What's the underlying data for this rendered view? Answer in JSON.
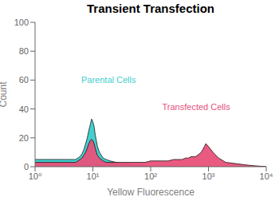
{
  "chart_data": {
    "type": "area",
    "title": "Transient Transfection",
    "xlabel": "Yellow Fluorescence",
    "ylabel": "Count",
    "log": "x",
    "xlim": [
      1,
      10000
    ],
    "xticks": [
      {
        "value": 1,
        "label": "10⁰"
      },
      {
        "value": 10,
        "label": "10¹"
      },
      {
        "value": 100,
        "label": "10²"
      },
      {
        "value": 1000,
        "label": "10³"
      },
      {
        "value": 10000,
        "label": "10⁴"
      }
    ],
    "ylim": [
      0,
      100
    ],
    "yticks": [
      0,
      20,
      40,
      60,
      80,
      100
    ],
    "grid": false,
    "series": [
      {
        "name": "Parental Cells",
        "color": "#45CECE",
        "x": [
          1.0,
          1.5,
          2.0,
          2.5,
          3.0,
          3.5,
          4.0,
          4.5,
          5.0,
          5.5,
          6.0,
          6.5,
          7.0,
          7.5,
          8.0,
          8.5,
          9.0,
          9.5,
          10.0,
          10.5,
          11.0,
          11.5,
          12.0,
          13.0,
          14.0,
          15.0,
          17.0,
          20.0,
          25.0,
          30.0,
          40.0,
          50.0,
          70.0,
          100.0,
          150.0,
          200.0,
          300.0,
          500.0,
          700.0,
          1000.0,
          2000.0,
          5000.0,
          10000.0
        ],
        "values": [
          5,
          5,
          5,
          5,
          5,
          5,
          5,
          5,
          5,
          6,
          7,
          9,
          12,
          16,
          20,
          25,
          29,
          33,
          31,
          28,
          22,
          18,
          14,
          10,
          8,
          6,
          5,
          4,
          3,
          2,
          2,
          1,
          1,
          0,
          0,
          0,
          0,
          0,
          0,
          0,
          0,
          0,
          0
        ]
      },
      {
        "name": "Transfected Cells",
        "color": "#E8517A",
        "x": [
          1.0,
          1.5,
          2.0,
          2.5,
          3.0,
          3.5,
          4.0,
          4.5,
          5.0,
          5.5,
          6.0,
          6.5,
          7.0,
          7.5,
          8.0,
          8.5,
          9.0,
          9.5,
          10.0,
          10.5,
          11.0,
          11.5,
          12.0,
          13.0,
          14.0,
          15.0,
          17.0,
          20.0,
          25.0,
          30.0,
          40.0,
          50.0,
          60.0,
          70.0,
          80.0,
          100.0,
          120.0,
          150.0,
          180.0,
          200.0,
          250.0,
          300.0,
          350.0,
          400.0,
          450.0,
          500.0,
          550.0,
          600.0,
          650.0,
          700.0,
          750.0,
          800.0,
          850.0,
          900.0,
          950.0,
          1000.0,
          1200.0,
          1500.0,
          2000.0,
          5000.0,
          10000.0
        ],
        "values": [
          3,
          3,
          3,
          3,
          3,
          3,
          3,
          3,
          3,
          4,
          5,
          6,
          8,
          10,
          13,
          16,
          18,
          19,
          18,
          16,
          13,
          10,
          8,
          6,
          5,
          4,
          3,
          3,
          3,
          3,
          3,
          3,
          3,
          3,
          3,
          4,
          4,
          4,
          4,
          4,
          5,
          5,
          5,
          6,
          6,
          7,
          7,
          7,
          8,
          9,
          10,
          12,
          14,
          16,
          15,
          14,
          10,
          6,
          3,
          1,
          0
        ]
      }
    ]
  }
}
